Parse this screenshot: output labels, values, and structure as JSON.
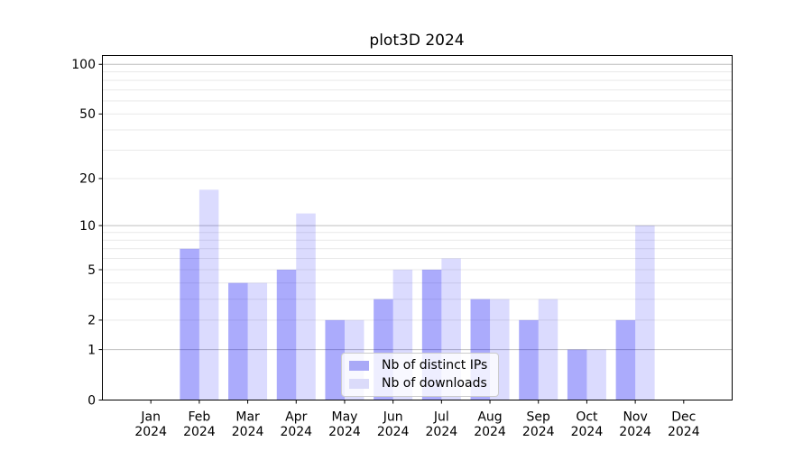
{
  "window": {
    "background": "#ffffff"
  },
  "chart_data": {
    "type": "bar",
    "title": "plot3D 2024",
    "categories": [
      "Jan",
      "Feb",
      "Mar",
      "Apr",
      "May",
      "Jun",
      "Jul",
      "Aug",
      "Sep",
      "Oct",
      "Nov",
      "Dec"
    ],
    "year_label": "2024",
    "series": [
      {
        "name": "Nb of distinct IPs",
        "key": "distinct-ips",
        "color": "#a9a9f7",
        "fill": "rgba(10,10,245,0.34)",
        "values": [
          0,
          7,
          4,
          5,
          2,
          3,
          5,
          3,
          2,
          1,
          2,
          0
        ]
      },
      {
        "name": "Nb of downloads",
        "key": "downloads",
        "color": "#dbdbfa",
        "fill": "rgba(10,10,245,0.145)",
        "values": [
          0,
          17,
          4,
          12,
          2,
          5,
          6,
          3,
          3,
          1,
          10,
          0
        ]
      }
    ],
    "yscale": "log1p",
    "ylim": [
      0,
      113
    ],
    "ytick_labels": [
      "0",
      "1",
      "2",
      "5",
      "10",
      "20",
      "50",
      "100"
    ],
    "grid_major": [
      1,
      10,
      100
    ],
    "grid_minor": [
      2,
      3,
      4,
      5,
      6,
      7,
      8,
      9,
      20,
      30,
      40,
      50,
      60,
      70,
      80,
      90
    ],
    "grid_on": true,
    "legend_position": "lower-center-left",
    "colors": {
      "grid_major": "#bfbfbf",
      "grid_minor": "#e9e9e9",
      "axis": "#000000",
      "text": "#000000"
    }
  },
  "legend": {
    "items": [
      {
        "label": "Nb of distinct IPs",
        "color": "#a9a9f7"
      },
      {
        "label": "Nb of downloads",
        "color": "#dbdbfa"
      }
    ]
  }
}
